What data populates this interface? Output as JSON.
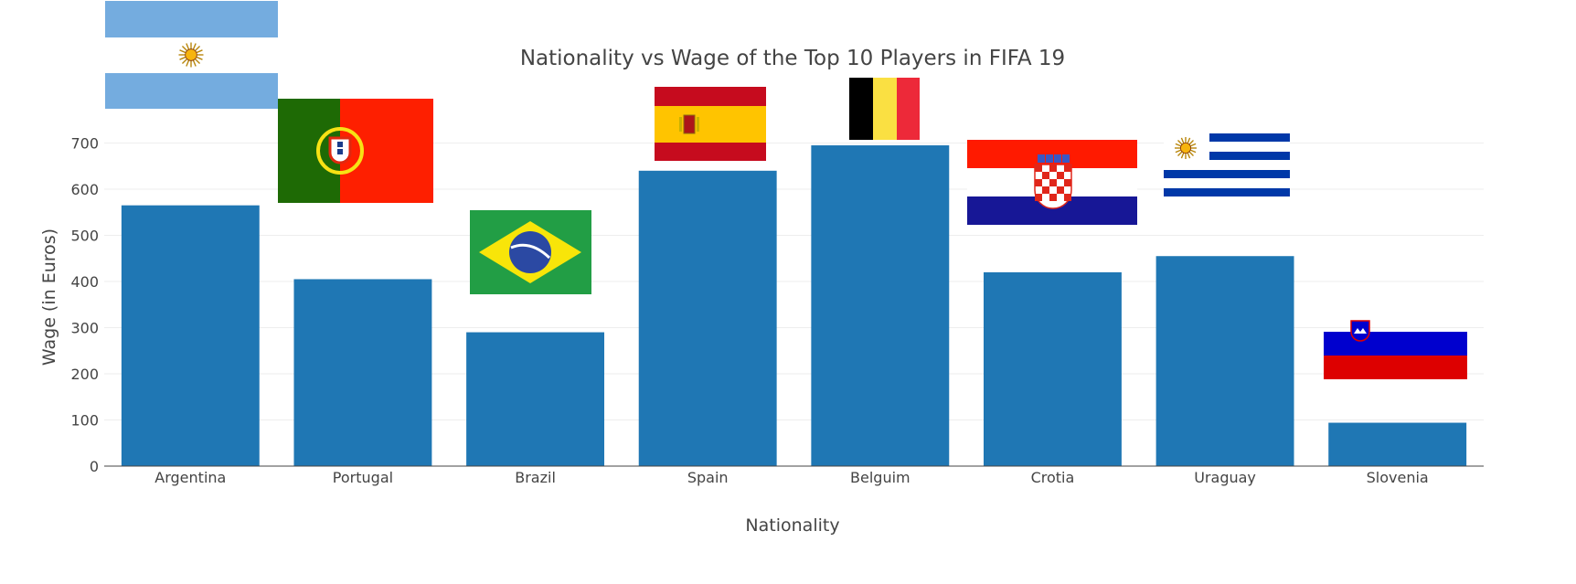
{
  "chart_data": {
    "type": "bar",
    "title": "Nationality vs Wage of the Top 10 Players in FIFA 19",
    "xlabel": "Nationality",
    "ylabel": "Wage (in Euros)",
    "categories": [
      "Argentina",
      "Portugal",
      "Brazil",
      "Spain",
      "Belguim",
      "Crotia",
      "Uraguay",
      "Slovenia"
    ],
    "values": [
      565,
      405,
      290,
      640,
      695,
      420,
      455,
      94
    ],
    "ylim": [
      0,
      720
    ],
    "yticks": [
      0,
      100,
      200,
      300,
      400,
      500,
      600,
      700
    ],
    "grid": true,
    "bar_color": "#1f77b4",
    "flags": [
      "argentina-flag",
      "portugal-flag",
      "brazil-flag",
      "spain-flag",
      "belgium-flag",
      "croatia-flag",
      "uruguay-flag",
      "slovenia-flag"
    ]
  }
}
